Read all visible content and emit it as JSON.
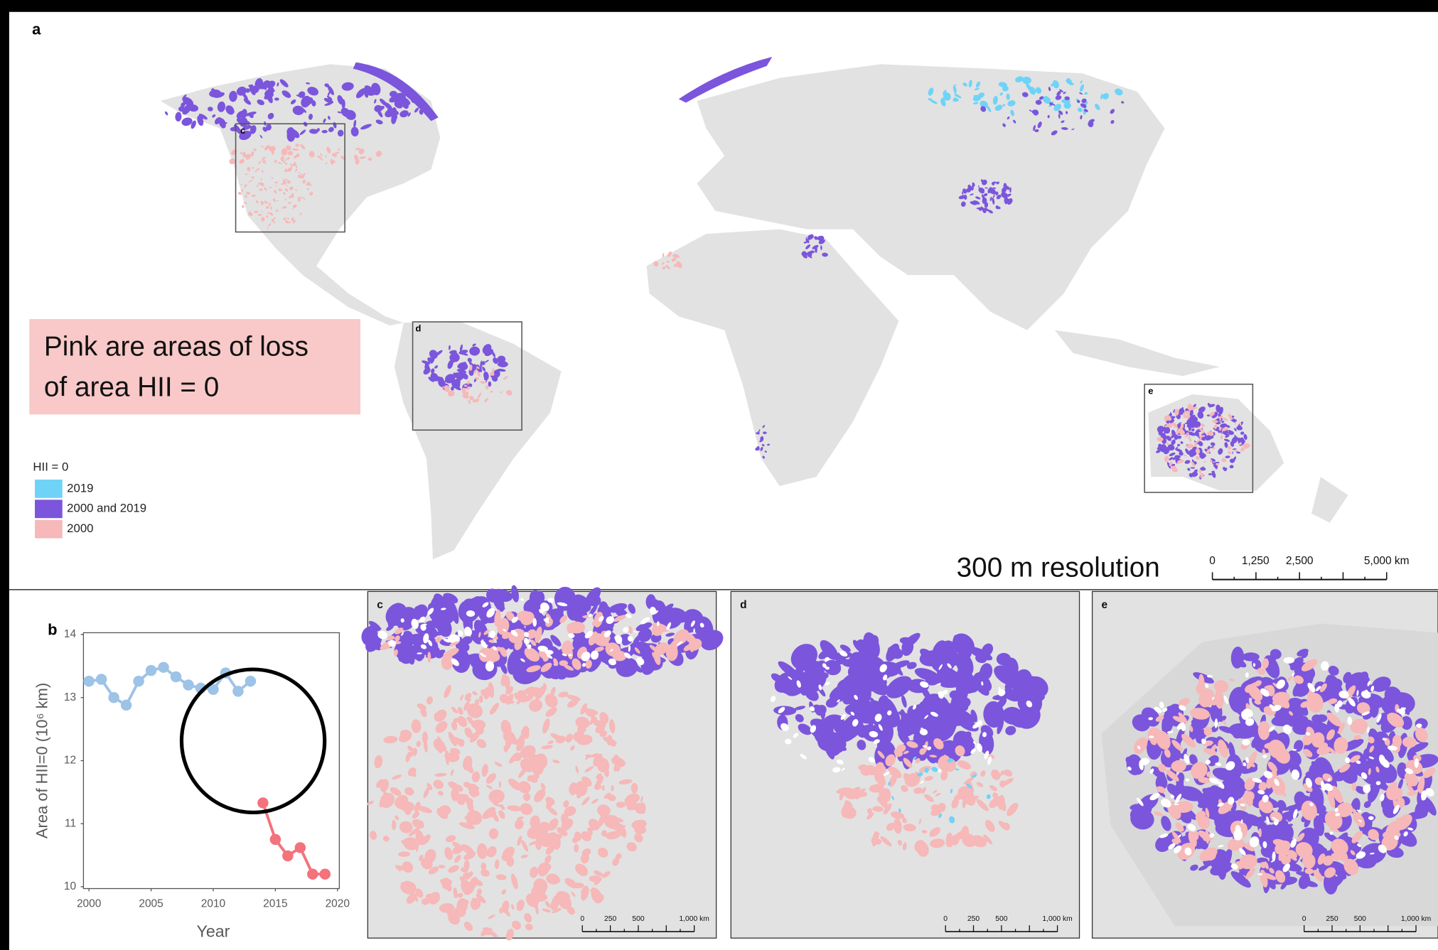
{
  "panel_labels": [
    "a",
    "b",
    "c",
    "d",
    "e"
  ],
  "annotation": {
    "lines": [
      "Pink are areas of loss",
      "of area HII = 0"
    ]
  },
  "legend": {
    "title": "HII = 0",
    "items": [
      {
        "label": "2019",
        "color": "#6fd3f7"
      },
      {
        "label": "2000 and 2019",
        "color": "#7b55dc"
      },
      {
        "label": "2000",
        "color": "#f6b8b8"
      }
    ]
  },
  "resolution_note": "300 m resolution",
  "map_scale": {
    "labels": [
      "0",
      "1,250",
      "2,500",
      "5,000 km"
    ]
  },
  "inset_scale": {
    "labels": [
      "0",
      "250",
      "500",
      "1,000 km"
    ]
  },
  "chart_data": {
    "type": "line",
    "x": [
      2000,
      2001,
      2002,
      2003,
      2004,
      2005,
      2006,
      2007,
      2008,
      2009,
      2010,
      2011,
      2012,
      2013,
      2014,
      2015,
      2016,
      2017,
      2018,
      2019
    ],
    "series": [
      {
        "color": "#9dc3e6",
        "values": [
          13.26,
          13.29,
          13.0,
          12.88,
          13.26,
          13.43,
          13.48,
          13.33,
          13.2,
          13.15,
          13.13,
          13.39,
          13.1,
          13.26,
          null,
          null,
          null,
          null,
          null,
          null
        ]
      },
      {
        "color": "#f4727b",
        "values": [
          null,
          null,
          null,
          null,
          null,
          null,
          null,
          null,
          null,
          null,
          null,
          null,
          null,
          null,
          11.33,
          10.75,
          10.49,
          10.62,
          10.2,
          10.2
        ]
      }
    ],
    "xlabel": "Year",
    "ylabel": "Area of HII=0  (10⁶ km)",
    "xlim": [
      2000,
      2020
    ],
    "xticks": [
      2000,
      2005,
      2010,
      2015,
      2020
    ],
    "ylim": [
      10,
      14
    ],
    "yticks": [
      10,
      11,
      12,
      13,
      14
    ]
  }
}
